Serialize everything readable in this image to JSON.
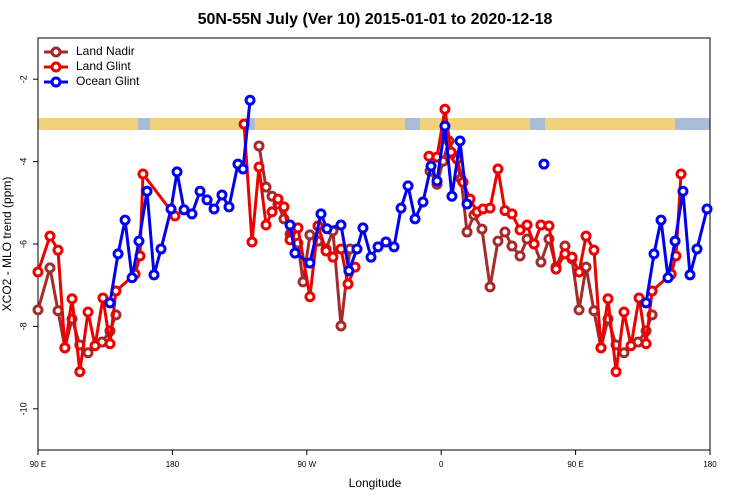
{
  "chart_data": {
    "type": "line",
    "title": "50N-55N July (Ver 10)   2015-01-01 to 2020-12-18",
    "x_label": "Longitude",
    "y_label": "XCO2 - MLO trend (ppm)",
    "xlim": [
      90,
      540
    ],
    "ylim": [
      -11,
      -1
    ],
    "xticks": [
      {
        "value": 90,
        "label": "90 E"
      },
      180,
      {
        "value": 270,
        "label": "90 W"
      },
      {
        "value": 360,
        "label": "0"
      },
      {
        "value": 450,
        "label": "90 E"
      },
      {
        "value": 540,
        "label": "180"
      }
    ],
    "yticks": [
      -2,
      -4,
      -6,
      -8,
      -10
    ],
    "legend": "top-left",
    "series": [
      {
        "name": "Land Nadir",
        "color": "#a52a2a",
        "x": [
          90,
          98,
          103.4,
          108,
          112.8,
          118,
          123.5,
          132.9,
          138.2,
          142.2,
          null,
          238,
          242.7,
          246.7,
          250.7,
          254.7,
          258.8,
          264.1,
          267.5,
          272.1,
          277.5,
          282.9,
          287.5,
          292.9,
          298.9,
          null,
          352.5,
          357.2,
          361.2,
          365.2,
          369.2,
          373.3,
          377.3,
          381.9,
          387.3,
          392.7,
          398,
          402.7,
          407.4,
          412.8,
          417.5,
          422.2,
          426.8,
          432.2,
          436.9,
          442.9,
          447.6,
          452.3,
          457,
          462.3,
          467,
          471.7,
          477.1,
          482.4,
          491.8,
          497.2,
          501.2
        ],
        "values": [
          -7.6,
          -6.58,
          -7.62,
          -8.52,
          -7.82,
          -8.45,
          -8.64,
          -8.38,
          -8.11,
          -7.72,
          null,
          -3.62,
          -4.62,
          -4.84,
          -5.03,
          -5.39,
          -5.76,
          -5.98,
          -6.92,
          -5.78,
          -5.93,
          -6.12,
          -5.68,
          -7.99,
          -6.12,
          null,
          -4.23,
          -4.55,
          -3.99,
          -3.5,
          -3.87,
          -4.42,
          -5.71,
          -5.3,
          -5.64,
          -7.04,
          -5.93,
          -5.71,
          -6.05,
          -6.29,
          -5.88,
          -6.0,
          -6.44,
          -5.88,
          -6.56,
          -6.05,
          -6.36,
          -7.6,
          -6.56,
          -7.62,
          -8.52,
          -7.82,
          -8.45,
          -8.64,
          -8.38,
          -8.11,
          -7.72
        ]
      },
      {
        "name": "Land Glint",
        "color": "#ee0000",
        "x": [
          90,
          98,
          103.4,
          108,
          112.8,
          118,
          123.5,
          128.2,
          133.5,
          138.2,
          142.2,
          155,
          158.3,
          160.3,
          181.7,
          null,
          228,
          233.3,
          238,
          242.7,
          246.7,
          250.7,
          254.7,
          258.8,
          264.1,
          272.1,
          277.5,
          282.9,
          287.5,
          292.9,
          297.6,
          302.3,
          null,
          351.8,
          357.2,
          362.5,
          366.6,
          370.6,
          374.6,
          379.3,
          384,
          388,
          392.7,
          398,
          402.7,
          407.4,
          412.8,
          417.5,
          422.2,
          426.8,
          432.2,
          436.9,
          442.9,
          447.6,
          452.3,
          457,
          462.3,
          467,
          471.7,
          477.1,
          482.4,
          487.1,
          492.5,
          497.2,
          501.2,
          514,
          517.2,
          520.6
        ],
        "values": [
          -6.68,
          -5.81,
          -6.15,
          -8.52,
          -7.33,
          -9.1,
          -7.65,
          -8.47,
          -7.31,
          -8.42,
          -7.14,
          -6.73,
          -6.29,
          -4.3,
          -5.32,
          null,
          -3.09,
          -5.95,
          -4.13,
          -5.54,
          -5.22,
          -4.91,
          -5.1,
          -5.9,
          -5.61,
          -7.28,
          -5.56,
          -6.17,
          -6.32,
          -6.12,
          -6.97,
          -6.56,
          null,
          -3.87,
          -3.89,
          -2.73,
          -3.77,
          -3.94,
          -4.5,
          -4.91,
          -5.22,
          -5.15,
          -5.13,
          -4.18,
          -5.19,
          -5.27,
          -5.66,
          -5.54,
          -6.0,
          -5.54,
          -5.56,
          -6.61,
          -6.24,
          -6.32,
          -6.68,
          -5.81,
          -6.15,
          -8.52,
          -7.33,
          -9.1,
          -7.65,
          -8.47,
          -7.31,
          -8.42,
          -7.14,
          -6.73,
          -6.29,
          -4.3
        ]
      },
      {
        "name": "Ocean Glint",
        "color": "#0000ee",
        "x": [
          138.2,
          143.6,
          148.3,
          153,
          157.6,
          163,
          167.7,
          172.4,
          179.1,
          183.1,
          187.8,
          193.1,
          198.5,
          203.2,
          207.9,
          213.2,
          217.9,
          223.9,
          227.3,
          232,
          null,
          258.8,
          262.1,
          272.1,
          279.5,
          283.5,
          292.9,
          298.2,
          303.6,
          307.6,
          313,
          317.7,
          323,
          328.4,
          333.1,
          337.8,
          342.5,
          347.8,
          353.2,
          357.2,
          362.5,
          367.2,
          372.6,
          377.3,
          null,
          428.8,
          null,
          497.2,
          502.5,
          507.2,
          511.9,
          516.6,
          521.9,
          526.6,
          531.3,
          538
        ],
        "values": [
          -7.43,
          -6.24,
          -5.42,
          -6.82,
          -5.93,
          -4.72,
          -6.75,
          -6.12,
          -5.15,
          -4.25,
          -5.17,
          -5.27,
          -4.72,
          -4.93,
          -5.15,
          -4.81,
          -5.1,
          -4.06,
          -4.18,
          -2.51,
          null,
          -5.54,
          -6.22,
          -6.46,
          -5.27,
          -5.63,
          -5.54,
          -6.65,
          -6.12,
          -5.61,
          -6.32,
          -6.07,
          -5.95,
          -6.07,
          -5.13,
          -4.59,
          -5.39,
          -4.98,
          -4.11,
          -4.47,
          -3.14,
          -4.84,
          -3.5,
          -5.03,
          null,
          -4.06,
          null,
          -7.43,
          -6.24,
          -5.42,
          -6.82,
          -5.93,
          -4.72,
          -6.75,
          -6.12,
          -5.15
        ]
      }
    ]
  }
}
